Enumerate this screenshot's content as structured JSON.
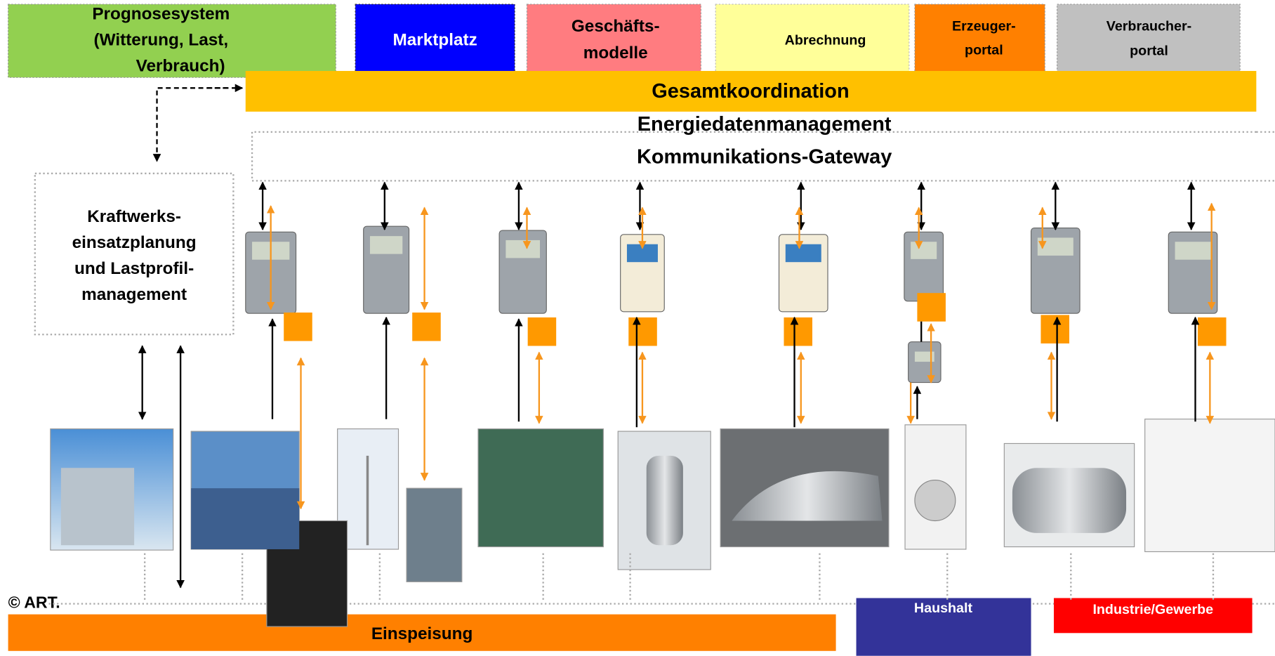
{
  "top_modules": [
    {
      "lines": [
        "Prognosesystem",
        "(Witterung, Last,",
        "Verbrauch)"
      ]
    },
    {
      "lines": [
        "Marktplatz"
      ]
    },
    {
      "lines": [
        "Geschäfts-",
        "modelle"
      ]
    },
    {
      "lines": [
        "Abrechnung"
      ]
    },
    {
      "lines": [
        "Erzeuger-",
        "portal"
      ]
    },
    {
      "lines": [
        "Verbraucher-",
        "portal"
      ]
    }
  ],
  "coordination": "Gesamtkoordination",
  "middleware": [
    "Energiedatenmanagement",
    "Kommunikations-Gateway"
  ],
  "planning": {
    "lines": [
      "Kraftwerks-",
      "einsatzplanung",
      "und Lastprofil-",
      "management"
    ]
  },
  "copyright": "© ART.",
  "footer": {
    "feed_in": "Einspeisung",
    "household": "Haushalt",
    "industry": "Industrie/Gewerbe"
  }
}
